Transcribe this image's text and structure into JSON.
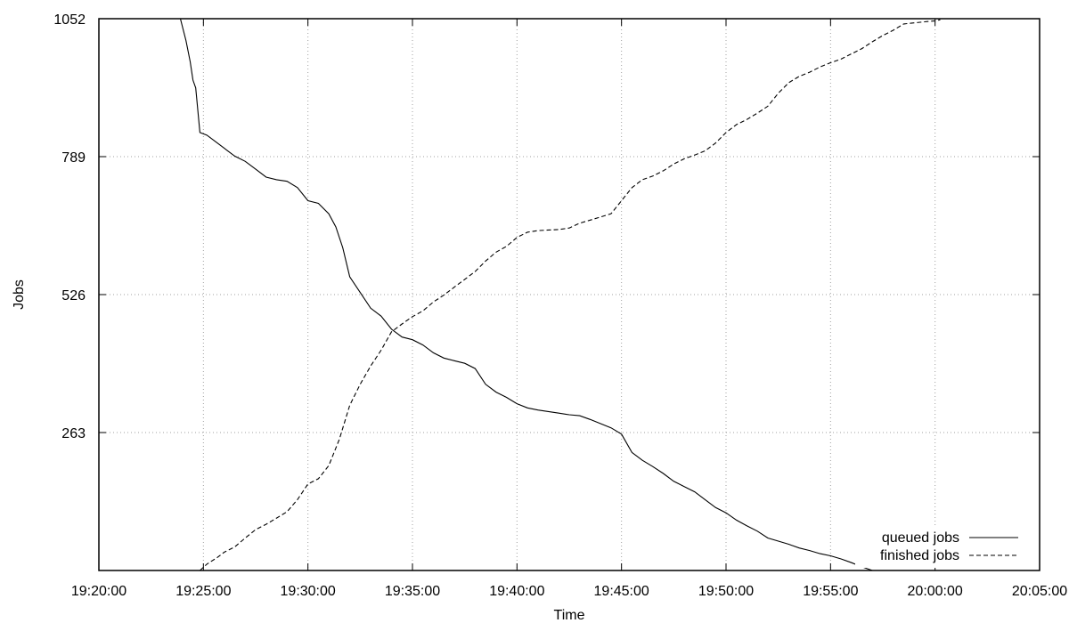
{
  "chart_data": {
    "type": "line",
    "title": "",
    "xlabel": "Time",
    "ylabel": "Jobs",
    "xlim": [
      "19:20:00",
      "20:05:00"
    ],
    "ylim": [
      0,
      1052
    ],
    "x_ticks": [
      "19:20:00",
      "19:25:00",
      "19:30:00",
      "19:35:00",
      "19:40:00",
      "19:45:00",
      "19:50:00",
      "19:55:00",
      "20:00:00",
      "20:05:00"
    ],
    "y_ticks": [
      263,
      526,
      789,
      1052
    ],
    "grid": true,
    "legend_position": "bottom-right",
    "series": [
      {
        "name": "queued jobs",
        "style": "solid",
        "points": [
          [
            "19:23:54",
            1052
          ],
          [
            "19:24:10",
            1010
          ],
          [
            "19:24:22",
            970
          ],
          [
            "19:24:30",
            935
          ],
          [
            "19:24:38",
            920
          ],
          [
            "19:24:50",
            835
          ],
          [
            "19:25:10",
            830
          ],
          [
            "19:25:40",
            815
          ],
          [
            "19:26:00",
            805
          ],
          [
            "19:26:30",
            790
          ],
          [
            "19:27:00",
            780
          ],
          [
            "19:27:30",
            765
          ],
          [
            "19:28:00",
            750
          ],
          [
            "19:28:30",
            745
          ],
          [
            "19:29:00",
            742
          ],
          [
            "19:29:30",
            730
          ],
          [
            "19:30:00",
            705
          ],
          [
            "19:30:30",
            700
          ],
          [
            "19:31:00",
            680
          ],
          [
            "19:31:20",
            655
          ],
          [
            "19:31:40",
            615
          ],
          [
            "19:32:00",
            560
          ],
          [
            "19:32:30",
            530
          ],
          [
            "19:33:00",
            500
          ],
          [
            "19:33:30",
            485
          ],
          [
            "19:34:00",
            460
          ],
          [
            "19:34:30",
            445
          ],
          [
            "19:35:00",
            440
          ],
          [
            "19:35:30",
            430
          ],
          [
            "19:36:00",
            415
          ],
          [
            "19:36:30",
            405
          ],
          [
            "19:37:00",
            400
          ],
          [
            "19:37:30",
            395
          ],
          [
            "19:38:00",
            385
          ],
          [
            "19:38:30",
            355
          ],
          [
            "19:39:00",
            340
          ],
          [
            "19:39:30",
            330
          ],
          [
            "19:40:00",
            318
          ],
          [
            "19:40:30",
            310
          ],
          [
            "19:41:00",
            306
          ],
          [
            "19:41:30",
            303
          ],
          [
            "19:42:00",
            300
          ],
          [
            "19:42:30",
            297
          ],
          [
            "19:43:00",
            295
          ],
          [
            "19:43:30",
            288
          ],
          [
            "19:44:00",
            280
          ],
          [
            "19:44:30",
            272
          ],
          [
            "19:45:00",
            260
          ],
          [
            "19:45:30",
            225
          ],
          [
            "19:46:00",
            210
          ],
          [
            "19:46:30",
            198
          ],
          [
            "19:47:00",
            185
          ],
          [
            "19:47:30",
            170
          ],
          [
            "19:48:00",
            160
          ],
          [
            "19:48:30",
            150
          ],
          [
            "19:49:00",
            135
          ],
          [
            "19:49:30",
            120
          ],
          [
            "19:50:00",
            110
          ],
          [
            "19:50:30",
            96
          ],
          [
            "19:51:00",
            85
          ],
          [
            "19:51:30",
            75
          ],
          [
            "19:52:00",
            62
          ],
          [
            "19:52:30",
            56
          ],
          [
            "19:53:00",
            50
          ],
          [
            "19:53:30",
            43
          ],
          [
            "19:54:00",
            38
          ],
          [
            "19:54:30",
            32
          ],
          [
            "19:55:00",
            28
          ],
          [
            "19:55:30",
            22
          ],
          [
            "19:56:00",
            15
          ],
          [
            "19:56:30",
            7
          ],
          [
            "19:57:00",
            0
          ]
        ]
      },
      {
        "name": "finished jobs",
        "style": "dashed",
        "points": [
          [
            "19:24:50",
            0
          ],
          [
            "19:25:10",
            12
          ],
          [
            "19:25:40",
            25
          ],
          [
            "19:26:00",
            35
          ],
          [
            "19:26:30",
            45
          ],
          [
            "19:27:00",
            62
          ],
          [
            "19:27:30",
            78
          ],
          [
            "19:28:00",
            88
          ],
          [
            "19:28:30",
            100
          ],
          [
            "19:29:00",
            112
          ],
          [
            "19:29:30",
            135
          ],
          [
            "19:30:00",
            165
          ],
          [
            "19:30:30",
            175
          ],
          [
            "19:31:00",
            200
          ],
          [
            "19:31:30",
            250
          ],
          [
            "19:32:00",
            315
          ],
          [
            "19:32:30",
            355
          ],
          [
            "19:33:00",
            390
          ],
          [
            "19:33:30",
            420
          ],
          [
            "19:34:00",
            455
          ],
          [
            "19:34:30",
            470
          ],
          [
            "19:35:00",
            484
          ],
          [
            "19:35:30",
            495
          ],
          [
            "19:36:00",
            512
          ],
          [
            "19:36:30",
            525
          ],
          [
            "19:37:00",
            540
          ],
          [
            "19:37:30",
            555
          ],
          [
            "19:38:00",
            570
          ],
          [
            "19:38:30",
            590
          ],
          [
            "19:39:00",
            607
          ],
          [
            "19:39:30",
            618
          ],
          [
            "19:40:00",
            635
          ],
          [
            "19:40:30",
            645
          ],
          [
            "19:41:00",
            648
          ],
          [
            "19:42:00",
            650
          ],
          [
            "19:42:30",
            653
          ],
          [
            "19:43:00",
            662
          ],
          [
            "19:43:30",
            668
          ],
          [
            "19:44:00",
            674
          ],
          [
            "19:44:30",
            680
          ],
          [
            "19:45:00",
            705
          ],
          [
            "19:45:30",
            730
          ],
          [
            "19:46:00",
            745
          ],
          [
            "19:46:30",
            752
          ],
          [
            "19:47:00",
            762
          ],
          [
            "19:47:30",
            775
          ],
          [
            "19:48:00",
            785
          ],
          [
            "19:48:30",
            792
          ],
          [
            "19:49:00",
            800
          ],
          [
            "19:49:30",
            815
          ],
          [
            "19:50:00",
            835
          ],
          [
            "19:50:30",
            850
          ],
          [
            "19:51:00",
            860
          ],
          [
            "19:51:30",
            872
          ],
          [
            "19:52:00",
            885
          ],
          [
            "19:52:30",
            910
          ],
          [
            "19:53:00",
            930
          ],
          [
            "19:53:30",
            942
          ],
          [
            "19:54:00",
            950
          ],
          [
            "19:54:30",
            960
          ],
          [
            "19:55:00",
            968
          ],
          [
            "19:55:30",
            975
          ],
          [
            "19:56:00",
            985
          ],
          [
            "19:56:30",
            995
          ],
          [
            "19:57:00",
            1008
          ],
          [
            "19:57:30",
            1020
          ],
          [
            "19:58:00",
            1030
          ],
          [
            "19:58:30",
            1042
          ],
          [
            "19:59:00",
            1044
          ],
          [
            "19:59:30",
            1046
          ],
          [
            "20:00:00",
            1048
          ],
          [
            "20:00:15",
            1050
          ]
        ]
      }
    ]
  }
}
